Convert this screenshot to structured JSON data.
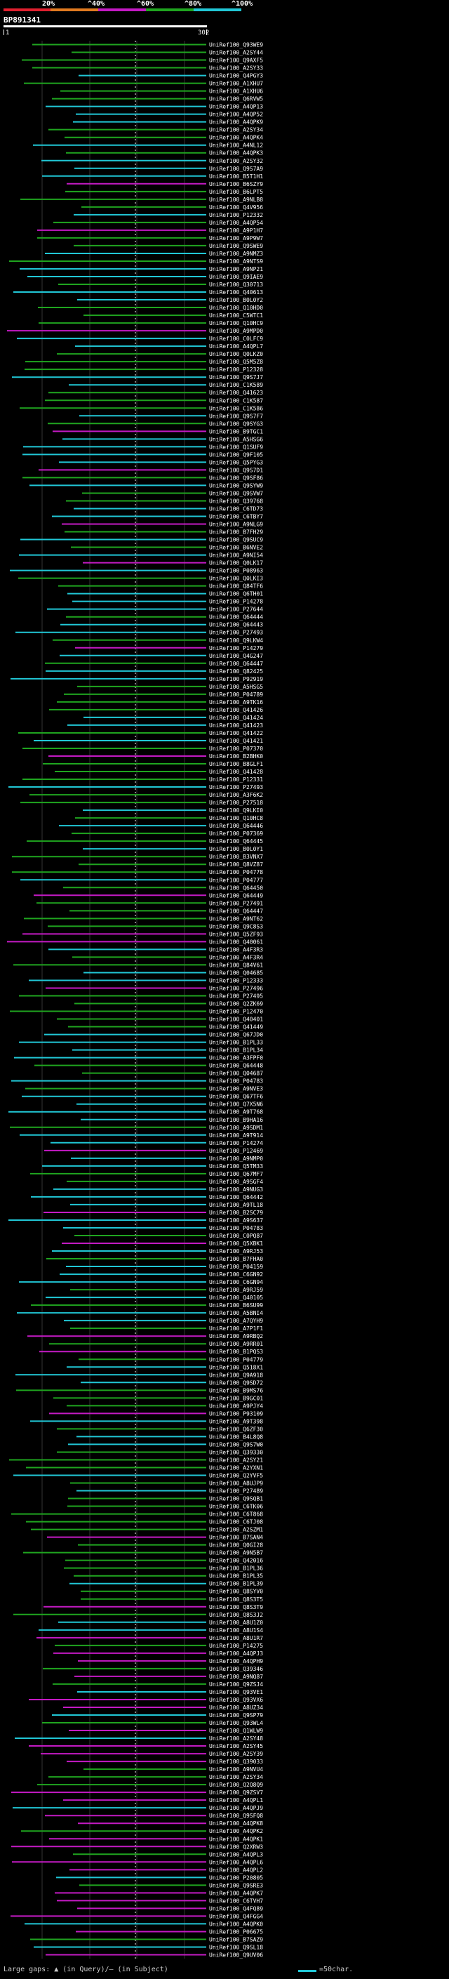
{
  "header": {
    "query_id": "BP891341",
    "query_start": "1",
    "query_end": "302",
    "scale_labels": [
      "20%",
      "^40%",
      "^60%",
      "^80%",
      "^100%"
    ]
  },
  "colors": {
    "band_red": "#e0202f",
    "band_orange": "#e07a20",
    "band_purple": "#c41ac4",
    "band_green": "#1fa51f",
    "band_cyan": "#21c7d6",
    "hit_high": "#21c7d6",
    "hit_mid": "#1fa51f",
    "hit_low": "#c41ac4",
    "hit_lowest": "#e0202f",
    "query_bar": "#ffffff",
    "label_text": "#ffffff"
  },
  "hits": [
    "UniRef100_Q93WE9",
    "UniRef100_A2SY44",
    "UniRef100_Q9AXF5",
    "UniRef100_A2SY33",
    "UniRef100_Q4PGY3",
    "UniRef100_A1XHU7",
    "UniRef100_A1XHU6",
    "UniRef100_Q6RVW5",
    "UniRef100_A4QP13",
    "UniRef100_A4QP52",
    "UniRef100_A4QPK9",
    "UniRef100_A2SY34",
    "UniRef100_A4QPK4",
    "UniRef100_A4NL12",
    "UniRef100_A4QPK3",
    "UniRef100_A2SY32",
    "UniRef100_Q9S7A9",
    "UniRef100_B5T1H1",
    "UniRef100_B6SZY9",
    "UniRef100_B6LPT5",
    "UniRef100_A9NLB8",
    "UniRef100_Q4V956",
    "UniRef100_P12332",
    "UniRef100_A4QP54",
    "UniRef100_A9P1H7",
    "UniRef100_A9P9W7",
    "UniRef100_Q9SWE9",
    "UniRef100_A9NMZ3",
    "UniRef100_A9NTS9",
    "UniRef100_A9NP21",
    "UniRef100_Q9IAE9",
    "UniRef100_Q30713",
    "UniRef100_Q40613",
    "UniRef100_B0L0Y2",
    "UniRef100_Q10HD0",
    "UniRef100_C5WTC1",
    "UniRef100_Q10HC9",
    "UniRef100_A9MPD0",
    "UniRef100_C0LFC9",
    "UniRef100_A4QPL7",
    "UniRef100_Q0LKZ0",
    "UniRef100_Q5M5Z8",
    "UniRef100_P12328",
    "UniRef100_Q9S7J7",
    "UniRef100_C1K589",
    "UniRef100_Q41623",
    "UniRef100_C1K587",
    "UniRef100_C1K586",
    "UniRef100_Q9S7F7",
    "UniRef100_Q9SYG3",
    "UniRef100_B9TGC1",
    "UniRef100_A5HSG6",
    "UniRef100_Q1SUF9",
    "UniRef100_Q9F105",
    "UniRef100_Q5PYG3",
    "UniRef100_Q9S7D1",
    "UniRef100_Q9SF86",
    "UniRef100_Q9SYW9",
    "UniRef100_Q9SVW7",
    "UniRef100_Q39768",
    "UniRef100_C6TD73",
    "UniRef100_C6TBY7",
    "UniRef100_A9NLG9",
    "UniRef100_B7FH29",
    "UniRef100_Q9SUC9",
    "UniRef100_B6NVE2",
    "UniRef100_A9NI54",
    "UniRef100_Q0LK17",
    "UniRef100_P08963",
    "UniRef100_Q0LKI3",
    "UniRef100_Q84TF6",
    "UniRef100_Q6TH01",
    "UniRef100_P14278",
    "UniRef100_P27644",
    "UniRef100_Q64444",
    "UniRef100_Q64443",
    "UniRef100_P27493",
    "UniRef100_Q9LKW4",
    "UniRef100_P14279",
    "UniRef100_Q4G247",
    "UniRef100_Q64447",
    "UniRef100_Q82425",
    "UniRef100_P92919",
    "UniRef100_A5HSG5",
    "UniRef100_P04789",
    "UniRef100_A9TK16",
    "UniRef100_Q41426",
    "UniRef100_Q41424",
    "UniRef100_Q41423",
    "UniRef100_Q41422",
    "UniRef100_Q41421",
    "UniRef100_P07370",
    "UniRef100_B2BHK0",
    "UniRef100_B8GLF1",
    "UniRef100_Q41428",
    "UniRef100_P12331",
    "UniRef100_P27493",
    "UniRef100_A3F6K2",
    "UniRef100_P27518",
    "UniRef100_Q9LKI0",
    "UniRef100_Q10HC8",
    "UniRef100_Q64446",
    "UniRef100_P07369",
    "UniRef100_Q64445",
    "UniRef100_B0L0Y1",
    "UniRef100_B3VNX7",
    "UniRef100_Q8VZ87",
    "UniRef100_P04778",
    "UniRef100_P04777",
    "UniRef100_Q64450",
    "UniRef100_Q64449",
    "UniRef100_P27491",
    "UniRef100_Q64447",
    "UniRef100_A9NT62",
    "UniRef100_Q9C8S3",
    "UniRef100_Q5ZF93",
    "UniRef100_Q40061",
    "UniRef100_A4F3R3",
    "UniRef100_A4F3R4",
    "UniRef100_Q84V61",
    "UniRef100_Q04685",
    "UniRef100_P12333",
    "UniRef100_P27496",
    "UniRef100_P27495",
    "UniRef100_Q2ZK69",
    "UniRef100_P12470",
    "UniRef100_Q40401",
    "UniRef100_Q41449",
    "UniRef100_Q67JD0",
    "UniRef100_B1PL33",
    "UniRef100_B1PL34",
    "UniRef100_A3FPF0",
    "UniRef100_Q64448",
    "UniRef100_Q04687",
    "UniRef100_P04783",
    "UniRef100_A9NVE3",
    "UniRef100_Q67TF6",
    "UniRef100_Q7X5N6",
    "UniRef100_A9T768",
    "UniRef100_B9HA16",
    "UniRef100_A9SDM1",
    "UniRef100_A9T914",
    "UniRef100_P14274",
    "UniRef100_P12469",
    "UniRef100_A9NMP0",
    "UniRef100_Q5TM33",
    "UniRef100_Q67MF7",
    "UniRef100_A9SGF4",
    "UniRef100_A9NUG3",
    "UniRef100_Q64442",
    "UniRef100_A9TL18",
    "UniRef100_B2SC79",
    "UniRef100_A9S637",
    "UniRef100_P04783",
    "UniRef100_C0PQ87",
    "UniRef100_Q5XBK1",
    "UniRef100_A9RJ53",
    "UniRef100_B7FHA0",
    "UniRef100_P04159",
    "UniRef100_C6GN92",
    "UniRef100_C6GN94",
    "UniRef100_A9RJ59",
    "UniRef100_Q40105",
    "UniRef100_B6SU99",
    "UniRef100_A5BNI4",
    "UniRef100_A7QYH9",
    "UniRef100_A7P1F1",
    "UniRef100_A9RBQ2",
    "UniRef100_A9RR01",
    "UniRef100_B1PQS3",
    "UniRef100_P04779",
    "UniRef100_Q518X1",
    "UniRef100_Q9A918",
    "UniRef100_Q9SD72",
    "UniRef100_B9MS76",
    "UniRef100_B9GC01",
    "UniRef100_A9PJY4",
    "UniRef100_P93109",
    "UniRef100_A9T398",
    "UniRef100_Q6ZF30",
    "UniRef100_B4L8Q8",
    "UniRef100_Q9S7W0",
    "UniRef100_Q39330",
    "UniRef100_A2SY21",
    "UniRef100_A2YXN1",
    "UniRef100_Q2YVF5",
    "UniRef100_A8UJP9",
    "UniRef100_P27489",
    "UniRef100_Q9SQB1",
    "UniRef100_C6TK06",
    "UniRef100_C6T868",
    "UniRef100_C6TJ08",
    "UniRef100_A2SZM1",
    "UniRef100_B7SAN4",
    "UniRef100_Q0GI28",
    "UniRef100_A9N5B7",
    "UniRef100_Q42016",
    "UniRef100_B1PL36",
    "UniRef100_B1PL35",
    "UniRef100_B1PL39",
    "UniRef100_Q8SYV0",
    "UniRef100_Q8S3T5",
    "UniRef100_Q8S3T9",
    "UniRef100_Q8S3J2",
    "UniRef100_A8U1Z0",
    "UniRef100_A8U1S4",
    "UniRef100_A8U1R7",
    "UniRef100_P14275",
    "UniRef100_A4QPJ3",
    "UniRef100_A4QPH9",
    "UniRef100_Q39346",
    "UniRef100_A9NQ87",
    "UniRef100_Q9ZSJ4",
    "UniRef100_Q93VE1",
    "UniRef100_Q93VX6",
    "UniRef100_A8UZ34",
    "UniRef100_Q9SP79",
    "UniRef100_Q93WL4",
    "UniRef100_Q1WLW9",
    "UniRef100_A2SY48",
    "UniRef100_A2SY45",
    "UniRef100_A2SY39",
    "UniRef100_Q39033",
    "UniRef100_A9NVU4",
    "UniRef100_A2SY34",
    "UniRef100_Q2Q8Q9",
    "UniRef100_Q9ZSV7",
    "UniRef100_A4QPL1",
    "UniRef100_A4QPJ9",
    "UniRef100_Q9SFQ8",
    "UniRef100_A4QPK8",
    "UniRef100_A4QPK2",
    "UniRef100_A4QPK1",
    "UniRef100_Q2XRW3",
    "UniRef100_A4QPL3",
    "UniRef100_A4QPL6",
    "UniRef100_A4QPL2",
    "UniRef100_P20805",
    "UniRef100_Q9SRE3",
    "UniRef100_A4QPK7",
    "UniRef100_C6TVH7",
    "UniRef100_Q4FQ89",
    "UniRef100_Q4FGG4",
    "UniRef100_A4QPK0",
    "UniRef100_P06675",
    "UniRef100_B7SAZ9",
    "UniRef100_Q9SL18",
    "UniRef100_Q9UV06"
  ],
  "footer": {
    "large_gaps": "Large gaps: ▲ (in Query)/— (in Subject)",
    "scale_note": "=50char."
  }
}
